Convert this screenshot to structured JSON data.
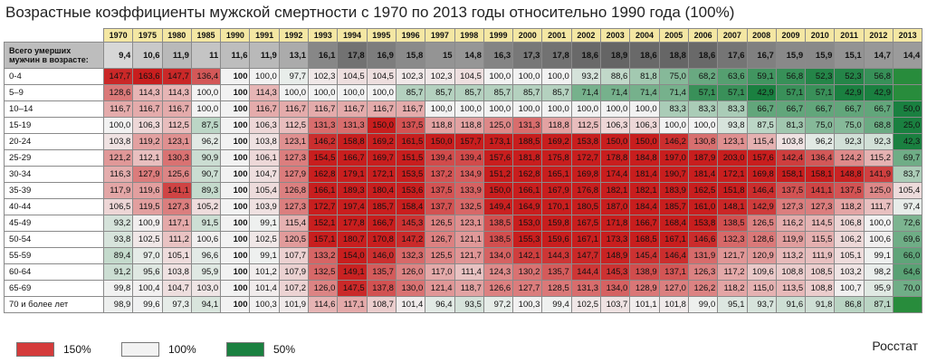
{
  "title": "Возрастные коэффициенты мужской смертности с 1970 по 2013 годы относительно 1990 года (100%)",
  "source": "Росстат",
  "colors": {
    "high": "#c81e1e",
    "mid": "#f2f2f2",
    "low": "#1a8a4a",
    "header": "#f4e7a3",
    "deaths_row": "#bdbdbd"
  },
  "legend": [
    {
      "label": "150%",
      "color": "#d43b3b"
    },
    {
      "label": "100%",
      "color": "#f2f2f2"
    },
    {
      "label": "50%",
      "color": "#1a8040"
    }
  ],
  "chart_data": {
    "type": "heatmap",
    "years": [
      "1970",
      "1975",
      "1980",
      "1985",
      "1990",
      "1991",
      "1992",
      "1993",
      "1994",
      "1995",
      "1996",
      "1997",
      "1998",
      "1999",
      "2000",
      "2001",
      "2002",
      "2003",
      "2004",
      "2005",
      "2006",
      "2007",
      "2008",
      "2009",
      "2010",
      "2011",
      "2012",
      "2013"
    ],
    "deaths_row": {
      "label": "Всего умерших мужчин в возрасте:",
      "values": [
        "9,4",
        "10,6",
        "11,9",
        "11",
        "11,6",
        "11,9",
        "13,1",
        "16,1",
        "17,8",
        "16,9",
        "15,8",
        "15",
        "14,8",
        "16,3",
        "17,3",
        "17,8",
        "18,6",
        "18,9",
        "18,6",
        "18,8",
        "18,6",
        "17,6",
        "16,7",
        "15,9",
        "15,9",
        "15,1",
        "14,7",
        "14,4"
      ]
    },
    "rows": [
      {
        "label": "0-4",
        "values": [
          "147,7",
          "163,6",
          "147,7",
          "136,4",
          "100",
          "100,0",
          "97,7",
          "102,3",
          "104,5",
          "104,5",
          "102,3",
          "102,3",
          "104,5",
          "100,0",
          "100,0",
          "100,0",
          "93,2",
          "88,6",
          "81,8",
          "75,0",
          "68,2",
          "63,6",
          "59,1",
          "56,8",
          "52,3",
          "52,3",
          "56,8",
          ""
        ]
      },
      {
        "label": "5–9",
        "values": [
          "128,6",
          "114,3",
          "114,3",
          "100,0",
          "100",
          "114,3",
          "100,0",
          "100,0",
          "100,0",
          "100,0",
          "85,7",
          "85,7",
          "85,7",
          "85,7",
          "85,7",
          "85,7",
          "71,4",
          "71,4",
          "71,4",
          "71,4",
          "57,1",
          "57,1",
          "42,9",
          "57,1",
          "57,1",
          "42,9",
          "42,9",
          ""
        ]
      },
      {
        "label": "10–14",
        "values": [
          "116,7",
          "116,7",
          "116,7",
          "100,0",
          "100",
          "116,7",
          "116,7",
          "116,7",
          "116,7",
          "116,7",
          "116,7",
          "100,0",
          "100,0",
          "100,0",
          "100,0",
          "100,0",
          "100,0",
          "100,0",
          "100,0",
          "83,3",
          "83,3",
          "83,3",
          "66,7",
          "66,7",
          "66,7",
          "66,7",
          "66,7",
          "50,0"
        ]
      },
      {
        "label": "15-19",
        "values": [
          "100,0",
          "106,3",
          "112,5",
          "87,5",
          "100",
          "106,3",
          "112,5",
          "131,3",
          "131,3",
          "150,0",
          "137,5",
          "118,8",
          "118,8",
          "125,0",
          "131,3",
          "118,8",
          "112,5",
          "106,3",
          "106,3",
          "100,0",
          "100,0",
          "93,8",
          "87,5",
          "81,3",
          "75,0",
          "75,0",
          "68,8",
          "25,0"
        ]
      },
      {
        "label": "20-24",
        "values": [
          "103,8",
          "119,2",
          "123,1",
          "96,2",
          "100",
          "103,8",
          "123,1",
          "146,2",
          "158,8",
          "169,2",
          "161,5",
          "150,0",
          "157,7",
          "173,1",
          "188,5",
          "169,2",
          "153,8",
          "150,0",
          "150,0",
          "146,2",
          "130,8",
          "123,1",
          "115,4",
          "103,8",
          "96,2",
          "92,3",
          "92,3",
          "42,3"
        ]
      },
      {
        "label": "25-29",
        "values": [
          "121,2",
          "112,1",
          "130,3",
          "90,9",
          "100",
          "106,1",
          "127,3",
          "154,5",
          "166,7",
          "169,7",
          "151,5",
          "139,4",
          "139,4",
          "157,6",
          "181,8",
          "175,8",
          "172,7",
          "178,8",
          "184,8",
          "197,0",
          "187,9",
          "203,0",
          "157,6",
          "142,4",
          "136,4",
          "124,2",
          "115,2",
          "69,7"
        ]
      },
      {
        "label": "30-34",
        "values": [
          "116,3",
          "127,9",
          "125,6",
          "90,7",
          "100",
          "104,7",
          "127,9",
          "162,8",
          "179,1",
          "172,1",
          "153,5",
          "137,2",
          "134,9",
          "151,2",
          "162,8",
          "165,1",
          "169,8",
          "174,4",
          "181,4",
          "190,7",
          "181,4",
          "172,1",
          "169,8",
          "158,1",
          "158,1",
          "148,8",
          "141,9",
          "83,7"
        ]
      },
      {
        "label": "35-39",
        "values": [
          "117,9",
          "119,6",
          "141,1",
          "89,3",
          "100",
          "105,4",
          "126,8",
          "166,1",
          "189,3",
          "180,4",
          "153,6",
          "137,5",
          "133,9",
          "150,0",
          "166,1",
          "167,9",
          "176,8",
          "182,1",
          "182,1",
          "183,9",
          "162,5",
          "151,8",
          "146,4",
          "137,5",
          "141,1",
          "137,5",
          "125,0",
          "105,4"
        ]
      },
      {
        "label": "40-44",
        "values": [
          "106,5",
          "119,5",
          "127,3",
          "105,2",
          "100",
          "103,9",
          "127,3",
          "172,7",
          "197,4",
          "185,7",
          "158,4",
          "137,7",
          "132,5",
          "149,4",
          "164,9",
          "170,1",
          "180,5",
          "187,0",
          "184,4",
          "185,7",
          "161,0",
          "148,1",
          "142,9",
          "127,3",
          "127,3",
          "118,2",
          "111,7",
          "97,4"
        ]
      },
      {
        "label": "45-49",
        "values": [
          "93,2",
          "100,9",
          "117,1",
          "91,5",
          "100",
          "99,1",
          "115,4",
          "152,1",
          "177,8",
          "166,7",
          "145,3",
          "126,5",
          "123,1",
          "138,5",
          "153,0",
          "159,8",
          "167,5",
          "171,8",
          "166,7",
          "168,4",
          "153,8",
          "138,5",
          "126,5",
          "116,2",
          "114,5",
          "106,8",
          "100,0",
          "72,6"
        ]
      },
      {
        "label": "50-54",
        "values": [
          "93,8",
          "102,5",
          "111,2",
          "100,6",
          "100",
          "102,5",
          "120,5",
          "157,1",
          "180,7",
          "170,8",
          "147,2",
          "126,7",
          "121,1",
          "138,5",
          "155,3",
          "159,6",
          "167,1",
          "173,3",
          "168,5",
          "167,1",
          "146,6",
          "132,3",
          "128,6",
          "119,9",
          "115,5",
          "106,2",
          "100,6",
          "69,6"
        ]
      },
      {
        "label": "55-59",
        "values": [
          "89,4",
          "97,0",
          "105,1",
          "96,6",
          "100",
          "99,1",
          "107,7",
          "133,2",
          "154,0",
          "146,0",
          "132,3",
          "125,5",
          "121,7",
          "134,0",
          "142,1",
          "144,3",
          "147,7",
          "148,9",
          "145,4",
          "146,4",
          "131,9",
          "121,7",
          "120,9",
          "113,2",
          "111,9",
          "105,1",
          "99,1",
          "66,0"
        ]
      },
      {
        "label": "60-64",
        "values": [
          "91,2",
          "95,6",
          "103,8",
          "95,9",
          "100",
          "101,2",
          "107,9",
          "132,5",
          "149,1",
          "135,7",
          "126,0",
          "117,0",
          "111,4",
          "124,3",
          "130,2",
          "135,7",
          "144,4",
          "145,3",
          "138,9",
          "137,1",
          "126,3",
          "117,2",
          "109,6",
          "108,8",
          "108,5",
          "103,2",
          "98,2",
          "64,6"
        ]
      },
      {
        "label": "65-69",
        "values": [
          "99,8",
          "100,4",
          "104,7",
          "103,0",
          "100",
          "101,4",
          "107,2",
          "126,0",
          "147,5",
          "137,8",
          "130,0",
          "121,4",
          "118,7",
          "126,6",
          "127,7",
          "128,5",
          "131,3",
          "134,0",
          "128,9",
          "127,0",
          "126,2",
          "118,2",
          "115,0",
          "113,5",
          "108,8",
          "100,7",
          "95,9",
          "70,0"
        ]
      },
      {
        "label": "70 и более лет",
        "values": [
          "98,9",
          "99,6",
          "97,3",
          "94,1",
          "100",
          "100,3",
          "101,9",
          "114,6",
          "117,1",
          "108,7",
          "101,4",
          "96,4",
          "93,5",
          "97,2",
          "100,3",
          "99,4",
          "102,5",
          "103,7",
          "101,1",
          "101,8",
          "99,0",
          "95,1",
          "93,7",
          "91,6",
          "91,8",
          "86,8",
          "87,1",
          ""
        ]
      }
    ]
  }
}
